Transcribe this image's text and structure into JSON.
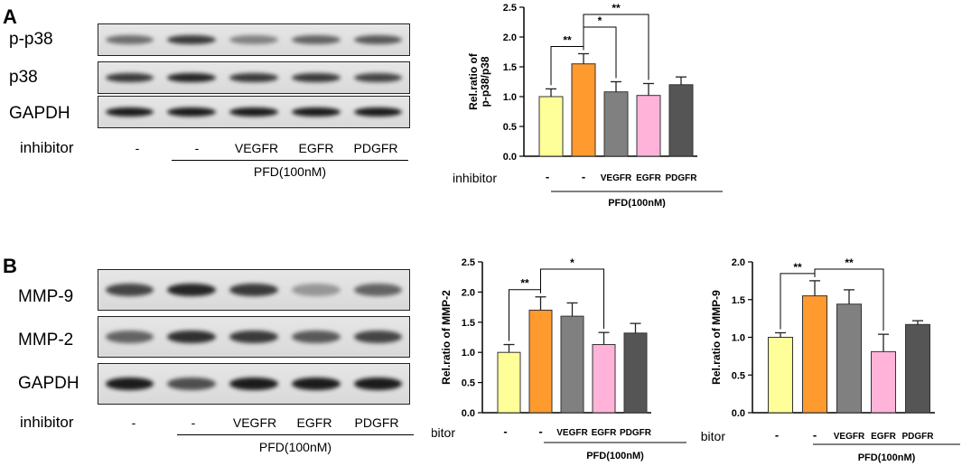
{
  "panel_a": {
    "letter": "A",
    "blot_labels": [
      "p-p38",
      "p38",
      "GAPDH"
    ],
    "inhibitor_label": "inhibitor",
    "lane_labels": [
      "-",
      "-",
      "VEGFR",
      "EGFR",
      "PDGFR"
    ],
    "group_label": "PFD(100nM)",
    "band_intensity": [
      [
        0.55,
        0.8,
        0.45,
        0.6,
        0.65
      ],
      [
        0.8,
        0.9,
        0.8,
        0.8,
        0.75
      ],
      [
        0.95,
        0.95,
        0.95,
        0.95,
        0.95
      ]
    ]
  },
  "panel_b": {
    "letter": "B",
    "blot_labels": [
      "MMP-9",
      "MMP-2",
      "GAPDH"
    ],
    "inhibitor_label": "inhibitor",
    "lane_labels": [
      "-",
      "-",
      "VEGFR",
      "EGFR",
      "PDGFR"
    ],
    "group_label": "PFD(100nM)",
    "band_intensity": [
      [
        0.75,
        0.9,
        0.8,
        0.35,
        0.6
      ],
      [
        0.6,
        0.85,
        0.8,
        0.65,
        0.75
      ],
      [
        0.95,
        0.7,
        0.95,
        0.95,
        0.95
      ]
    ]
  },
  "chart_data": [
    {
      "type": "bar",
      "ylabel": "Rel.ratio of p-p38/p38",
      "ylim": [
        0,
        2.5
      ],
      "yticks": [
        "0.0",
        "0.5",
        "1.0",
        "1.5",
        "2.0",
        "2.5"
      ],
      "categories": [
        "-",
        "-",
        "VEGFR",
        "EGFR",
        "PDGFR"
      ],
      "values": [
        1.0,
        1.55,
        1.08,
        1.02,
        1.2
      ],
      "errors": [
        0.13,
        0.17,
        0.17,
        0.2,
        0.13
      ],
      "colors": [
        "#ffff99",
        "#ff9a2e",
        "#808080",
        "#ffb3d9",
        "#555555"
      ],
      "inhibitor_label": "inhibitor",
      "group_label": "PFD(100nM)",
      "significance": [
        {
          "from": 0,
          "to": 1,
          "label": "**"
        },
        {
          "from": 1,
          "to": 2,
          "label": "*"
        },
        {
          "from": 1,
          "to": 3,
          "label": "**"
        }
      ]
    },
    {
      "type": "bar",
      "ylabel": "Rel.ratio of MMP-2",
      "ylim": [
        0,
        2.5
      ],
      "yticks": [
        "0.0",
        "0.5",
        "1.0",
        "1.5",
        "2.0",
        "2.5"
      ],
      "categories": [
        "-",
        "-",
        "VEGFR",
        "EGFR",
        "PDGFR"
      ],
      "values": [
        1.0,
        1.7,
        1.6,
        1.13,
        1.32
      ],
      "errors": [
        0.13,
        0.22,
        0.22,
        0.2,
        0.16
      ],
      "colors": [
        "#ffff99",
        "#ff9a2e",
        "#808080",
        "#ffb3d9",
        "#555555"
      ],
      "inhibitor_label": "inhibitor",
      "group_label": "PFD(100nM)",
      "significance": [
        {
          "from": 0,
          "to": 1,
          "label": "**"
        },
        {
          "from": 1,
          "to": 3,
          "label": "*"
        }
      ]
    },
    {
      "type": "bar",
      "ylabel": "Rel.ratio of MMP-9",
      "ylim": [
        0,
        2.0
      ],
      "yticks": [
        "0.0",
        "0.5",
        "1.0",
        "1.5",
        "2.0"
      ],
      "categories": [
        "-",
        "-",
        "VEGFR",
        "EGFR",
        "PDGFR"
      ],
      "values": [
        1.0,
        1.55,
        1.44,
        0.81,
        1.17
      ],
      "errors": [
        0.06,
        0.2,
        0.19,
        0.23,
        0.05
      ],
      "colors": [
        "#ffff99",
        "#ff9a2e",
        "#808080",
        "#ffb3d9",
        "#555555"
      ],
      "inhibitor_label": "inhibitor",
      "group_label": "PFD(100nM)",
      "significance": [
        {
          "from": 0,
          "to": 1,
          "label": "**"
        },
        {
          "from": 1,
          "to": 3,
          "label": "**"
        }
      ]
    }
  ]
}
